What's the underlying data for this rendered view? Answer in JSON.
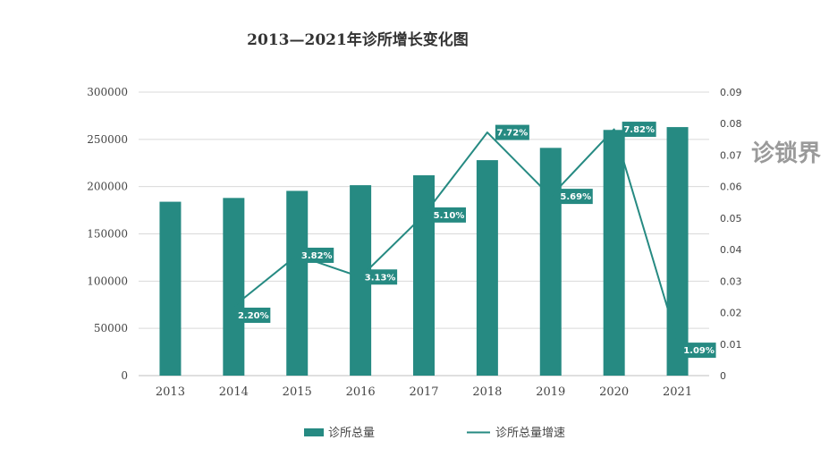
{
  "chart_data": {
    "type": "bar",
    "title": "2013—2021年诊所增长变化图",
    "categories": [
      "2013",
      "2014",
      "2015",
      "2016",
      "2017",
      "2018",
      "2019",
      "2020",
      "2021"
    ],
    "series": [
      {
        "name": "诊所总量",
        "type": "bar",
        "axis": "left",
        "values": [
          184000,
          188000,
          195500,
          201500,
          212000,
          228000,
          241000,
          260000,
          263000
        ]
      },
      {
        "name": "诊所总量增速",
        "type": "line",
        "axis": "right",
        "values": [
          null,
          0.022,
          0.0382,
          0.0313,
          0.051,
          0.0772,
          0.0569,
          0.0782,
          0.0109
        ],
        "labels": [
          "",
          "2.20%",
          "3.82%",
          "3.13%",
          "5.10%",
          "7.72%",
          "5.69%",
          "7.82%",
          "1.09%"
        ]
      }
    ],
    "y_left": {
      "min": 0,
      "max": 300000,
      "ticks": [
        "0",
        "50000",
        "100000",
        "150000",
        "200000",
        "250000",
        "300000"
      ]
    },
    "y_right": {
      "min": 0,
      "max": 0.09,
      "ticks": [
        "0",
        "0.01",
        "0.02",
        "0.03",
        "0.04",
        "0.05",
        "0.06",
        "0.07",
        "0.08",
        "0.09"
      ]
    },
    "grid": true,
    "legend_position": "bottom",
    "colors": {
      "bar": "#268a82",
      "line": "#268a82",
      "grid": "#d9d9d9",
      "label_bg": "#268a82"
    }
  },
  "watermark": {
    "text": "诊锁界"
  }
}
